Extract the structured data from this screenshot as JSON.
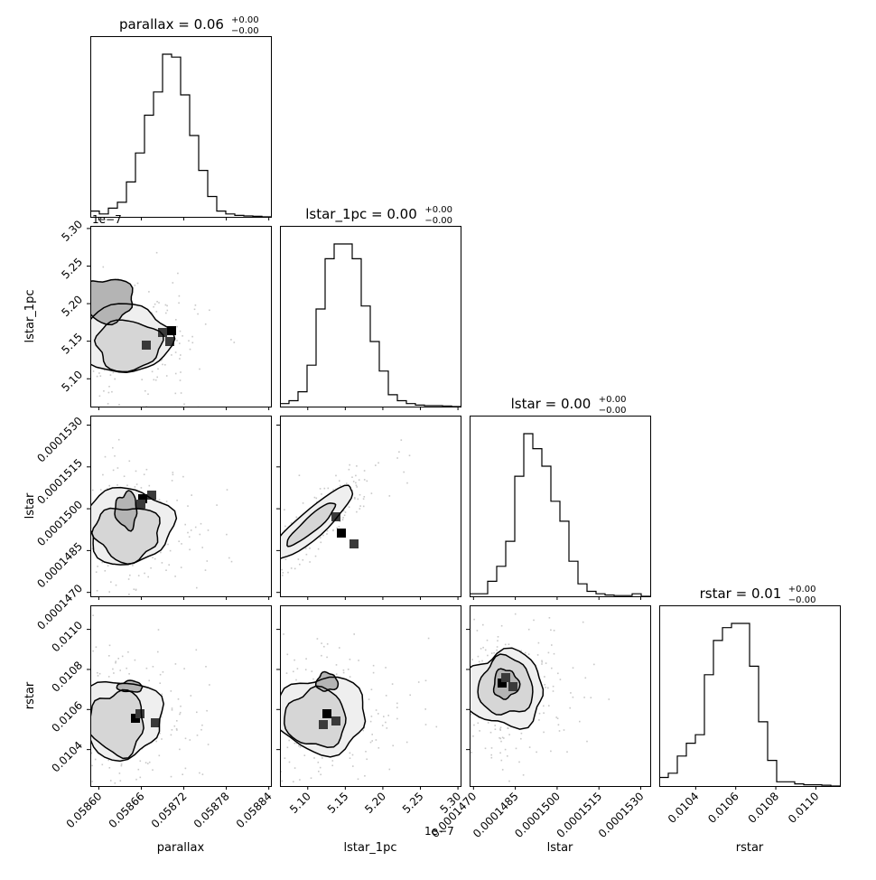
{
  "figure": {
    "type": "corner_plot",
    "parameters": [
      "parallax",
      "lstar_1pc",
      "lstar",
      "rstar"
    ]
  },
  "chart_data": {
    "type": "corner",
    "params": [
      {
        "name": "parallax",
        "range": [
          0.058588,
          0.058843
        ],
        "ticks": [
          0.0586,
          0.05866,
          0.05872,
          0.05878,
          0.05884
        ],
        "tick_labels": [
          "0.05860",
          "0.05866",
          "0.05872",
          "0.05878",
          "0.05884"
        ],
        "offset_text": "",
        "title_main": "parallax = 0.06",
        "title_plus": "+0.00",
        "title_minus": "−0.00",
        "xlabel": "parallax",
        "ylabel": ""
      },
      {
        "name": "lstar_1pc",
        "range": [
          5.063,
          5.3035
        ],
        "ticks": [
          5.1,
          5.15,
          5.2,
          5.25,
          5.3
        ],
        "tick_labels": [
          "5.10",
          "5.15",
          "5.20",
          "5.25",
          "5.30"
        ],
        "offset_text": "1e−7",
        "title_main": "lstar_1pc = 0.00",
        "title_plus": "+0.00",
        "title_minus": "−0.00",
        "xlabel": "lstar_1pc",
        "ylabel": "lstar_1pc"
      },
      {
        "name": "lstar",
        "range": [
          0.00014686,
          0.00015334
        ],
        "ticks": [
          0.000147,
          0.0001485,
          0.00015,
          0.0001515,
          0.000153
        ],
        "tick_labels": [
          "0.0001470",
          "0.0001485",
          "0.0001500",
          "0.0001515",
          "0.0001530"
        ],
        "offset_text": "",
        "title_main": "lstar = 0.00",
        "title_plus": "+0.00",
        "title_minus": "−0.00",
        "xlabel": "lstar",
        "ylabel": "lstar"
      },
      {
        "name": "rstar",
        "range": [
          0.010218,
          0.01112
        ],
        "ticks": [
          0.0104,
          0.0106,
          0.0108,
          0.011
        ],
        "tick_labels": [
          "0.0104",
          "0.0106",
          "0.0108",
          "0.0110"
        ],
        "offset_text": "",
        "title_main": "rstar = 0.01",
        "title_plus": "+0.00",
        "title_minus": "−0.00",
        "xlabel": "rstar",
        "ylabel": "rstar"
      }
    ],
    "histograms": [
      [
        2,
        1,
        3,
        5,
        12,
        22,
        35,
        43,
        56,
        55,
        42,
        28,
        16,
        7,
        2,
        1,
        0.5,
        0.3,
        0.2,
        0
      ],
      [
        1,
        2,
        5,
        14,
        33,
        50,
        55,
        55,
        50,
        34,
        22,
        12,
        4,
        2,
        1,
        0.5,
        0.3,
        0.3,
        0.2,
        0
      ],
      [
        1,
        1,
        6,
        12,
        22,
        48,
        65,
        59,
        52,
        38,
        30,
        14,
        5,
        2,
        1,
        0.5,
        0.3,
        0.3,
        1,
        0
      ],
      [
        2,
        3,
        7,
        10,
        12,
        26,
        34,
        37,
        38,
        38,
        28,
        15,
        6,
        1,
        1,
        0.5,
        0.3,
        0.3,
        0.2,
        0
      ]
    ],
    "grid": "off",
    "legend": "none"
  }
}
